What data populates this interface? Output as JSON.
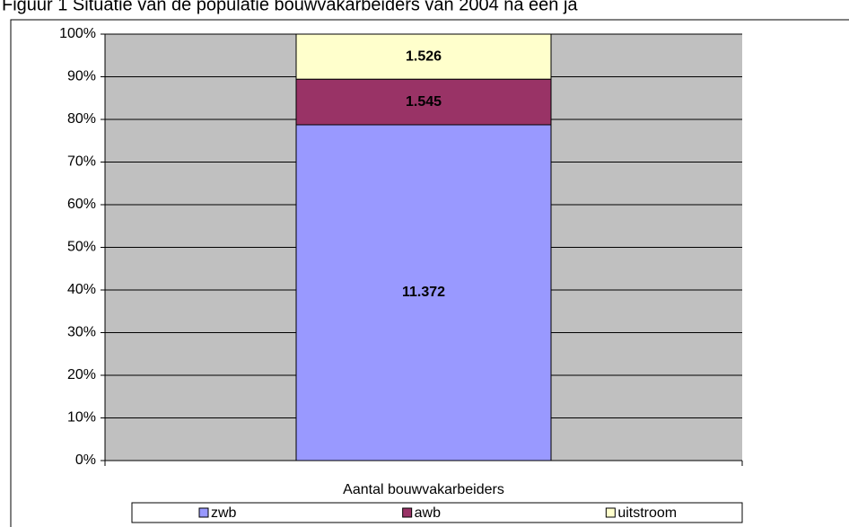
{
  "chart_data": {
    "type": "bar",
    "stack": "percent",
    "title": "Figuur 1 Situatie van de populatie bouwvakarbeiders van 2004 na een ja",
    "categories": [
      "Aantal bouwvakarbeiders"
    ],
    "series": [
      {
        "name": "zwb",
        "color": "#9999ff",
        "values": [
          11372
        ],
        "value_labels": [
          "11.372"
        ]
      },
      {
        "name": "awb",
        "color": "#993366",
        "values": [
          1545
        ],
        "value_labels": [
          "1.545"
        ]
      },
      {
        "name": "uitstroom",
        "color": "#ffffcc",
        "values": [
          1526
        ],
        "value_labels": [
          "1.526"
        ]
      }
    ],
    "ylim": [
      0,
      100
    ],
    "yticks": [
      {
        "value": 0,
        "label": "0%"
      },
      {
        "value": 10,
        "label": "10%"
      },
      {
        "value": 20,
        "label": "20%"
      },
      {
        "value": 30,
        "label": "30%"
      },
      {
        "value": 40,
        "label": "40%"
      },
      {
        "value": 50,
        "label": "50%"
      },
      {
        "value": 60,
        "label": "60%"
      },
      {
        "value": 70,
        "label": "70%"
      },
      {
        "value": 80,
        "label": "80%"
      },
      {
        "value": 90,
        "label": "90%"
      },
      {
        "value": 100,
        "label": "100%"
      }
    ],
    "grid": true,
    "legend": "bottom"
  }
}
